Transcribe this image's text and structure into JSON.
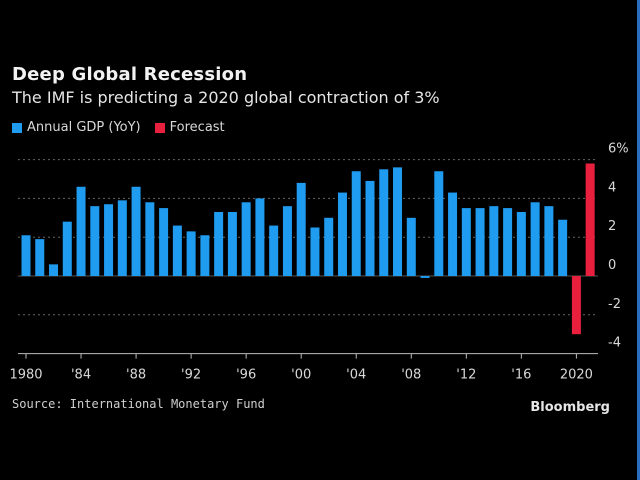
{
  "chart_data": {
    "type": "bar",
    "title": "Deep Global Recession",
    "subtitle": "The IMF is predicting a 2020 global contraction of 3%",
    "xlabel": "",
    "ylabel": "",
    "ylim": [
      -4,
      6
    ],
    "y_ticks": [
      6,
      4,
      2,
      0,
      -2,
      -4
    ],
    "y_tick_labels": [
      "6%",
      "4",
      "2",
      "0",
      "-2",
      "-4"
    ],
    "x_ticks": [
      1980,
      1984,
      1988,
      1992,
      1996,
      2000,
      2004,
      2008,
      2012,
      2016,
      2020
    ],
    "x_tick_labels": [
      "1980",
      "'84",
      "'88",
      "'92",
      "'96",
      "'00",
      "'04",
      "'08",
      "'12",
      "'16",
      "2020"
    ],
    "grid": true,
    "legend_position": "top-left",
    "series": [
      {
        "name": "Annual GDP (YoY)",
        "color": "#1f9bf0",
        "x": [
          1980,
          1981,
          1982,
          1983,
          1984,
          1985,
          1986,
          1987,
          1988,
          1989,
          1990,
          1991,
          1992,
          1993,
          1994,
          1995,
          1996,
          1997,
          1998,
          1999,
          2000,
          2001,
          2002,
          2003,
          2004,
          2005,
          2006,
          2007,
          2008,
          2009,
          2010,
          2011,
          2012,
          2013,
          2014,
          2015,
          2016,
          2017,
          2018,
          2019
        ],
        "values": [
          2.1,
          1.9,
          0.6,
          2.8,
          4.6,
          3.6,
          3.7,
          3.9,
          4.6,
          3.8,
          3.5,
          2.6,
          2.3,
          2.1,
          3.3,
          3.3,
          3.8,
          4.0,
          2.6,
          3.6,
          4.8,
          2.5,
          3.0,
          4.3,
          5.4,
          4.9,
          5.5,
          5.6,
          3.0,
          -0.1,
          5.4,
          4.3,
          3.5,
          3.5,
          3.6,
          3.5,
          3.3,
          3.8,
          3.6,
          2.9
        ]
      },
      {
        "name": "Forecast",
        "color": "#e8203d",
        "x": [
          2020,
          2021
        ],
        "values": [
          -3.0,
          5.8
        ]
      }
    ]
  },
  "footer": {
    "source": "Source: International Monetary Fund",
    "brand": "Bloomberg"
  }
}
